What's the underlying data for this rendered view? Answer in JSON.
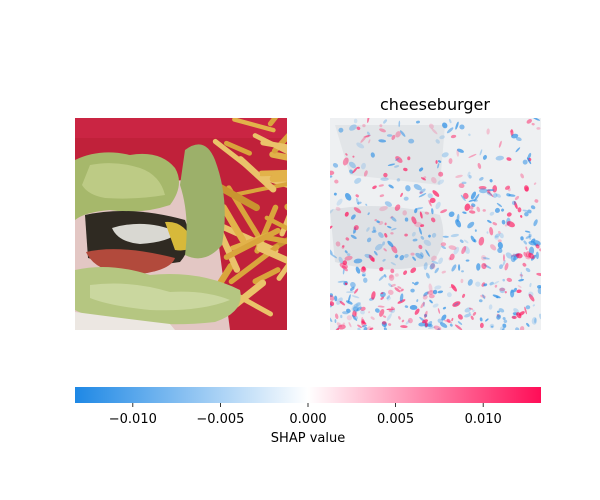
{
  "chart_data": {
    "type": "heatmap",
    "panels": [
      {
        "kind": "input-image",
        "title": ""
      },
      {
        "kind": "shap-explanation",
        "title": "cheeseburger"
      }
    ],
    "colorbar": {
      "label": "SHAP value",
      "min": -0.0133,
      "max": 0.0133,
      "ticks": [
        -0.01,
        -0.005,
        0.0,
        0.005,
        0.01
      ],
      "tick_labels": [
        "−0.010",
        "−0.005",
        "0.000",
        "0.005",
        "0.010"
      ],
      "colors": {
        "negative": "#1e88e5",
        "zero": "#ffffff",
        "positive": "#ff0d57"
      }
    }
  }
}
